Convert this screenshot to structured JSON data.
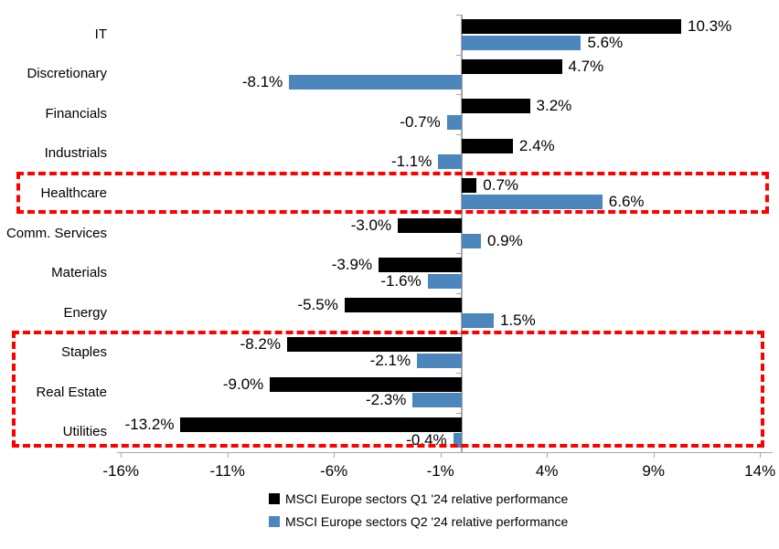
{
  "chart_data": {
    "type": "bar",
    "orientation": "horizontal",
    "value_suffix": "%",
    "categories": [
      "IT",
      "Discretionary",
      "Financials",
      "Industrials",
      "Healthcare",
      "Comm. Services",
      "Materials",
      "Energy",
      "Staples",
      "Real Estate",
      "Utilities"
    ],
    "series": [
      {
        "name": "MSCI Europe sectors Q1 '24 relative performance",
        "color": "#000000",
        "values": [
          10.3,
          4.7,
          3.2,
          2.4,
          0.7,
          -3.0,
          -3.9,
          -5.5,
          -8.2,
          -9.0,
          -13.2
        ]
      },
      {
        "name": "MSCI Europe sectors Q2 '24 relative performance",
        "color": "#4D86BC",
        "values": [
          5.6,
          -8.1,
          -0.7,
          -1.1,
          6.6,
          0.9,
          -1.6,
          1.5,
          -2.1,
          -2.3,
          -0.4
        ]
      }
    ],
    "x_tick_labels": [
      "-16%",
      "-11%",
      "-6%",
      "-1%",
      "4%",
      "9%",
      "14%"
    ],
    "x_tick_values": [
      -16,
      -11,
      -6,
      -1,
      4,
      9,
      14
    ],
    "xlim": [
      -16.2,
      14.6
    ],
    "grid": false,
    "legend_position": "bottom-center",
    "axis_color": "#A6A6A6",
    "highlight_color": "#FF0000",
    "highlights": [
      {
        "name": "healthcare-highlight",
        "categories": [
          "Healthcare"
        ]
      },
      {
        "name": "staples-real-estate-utilities-highlight",
        "categories": [
          "Staples",
          "Real Estate",
          "Utilities"
        ]
      }
    ]
  }
}
